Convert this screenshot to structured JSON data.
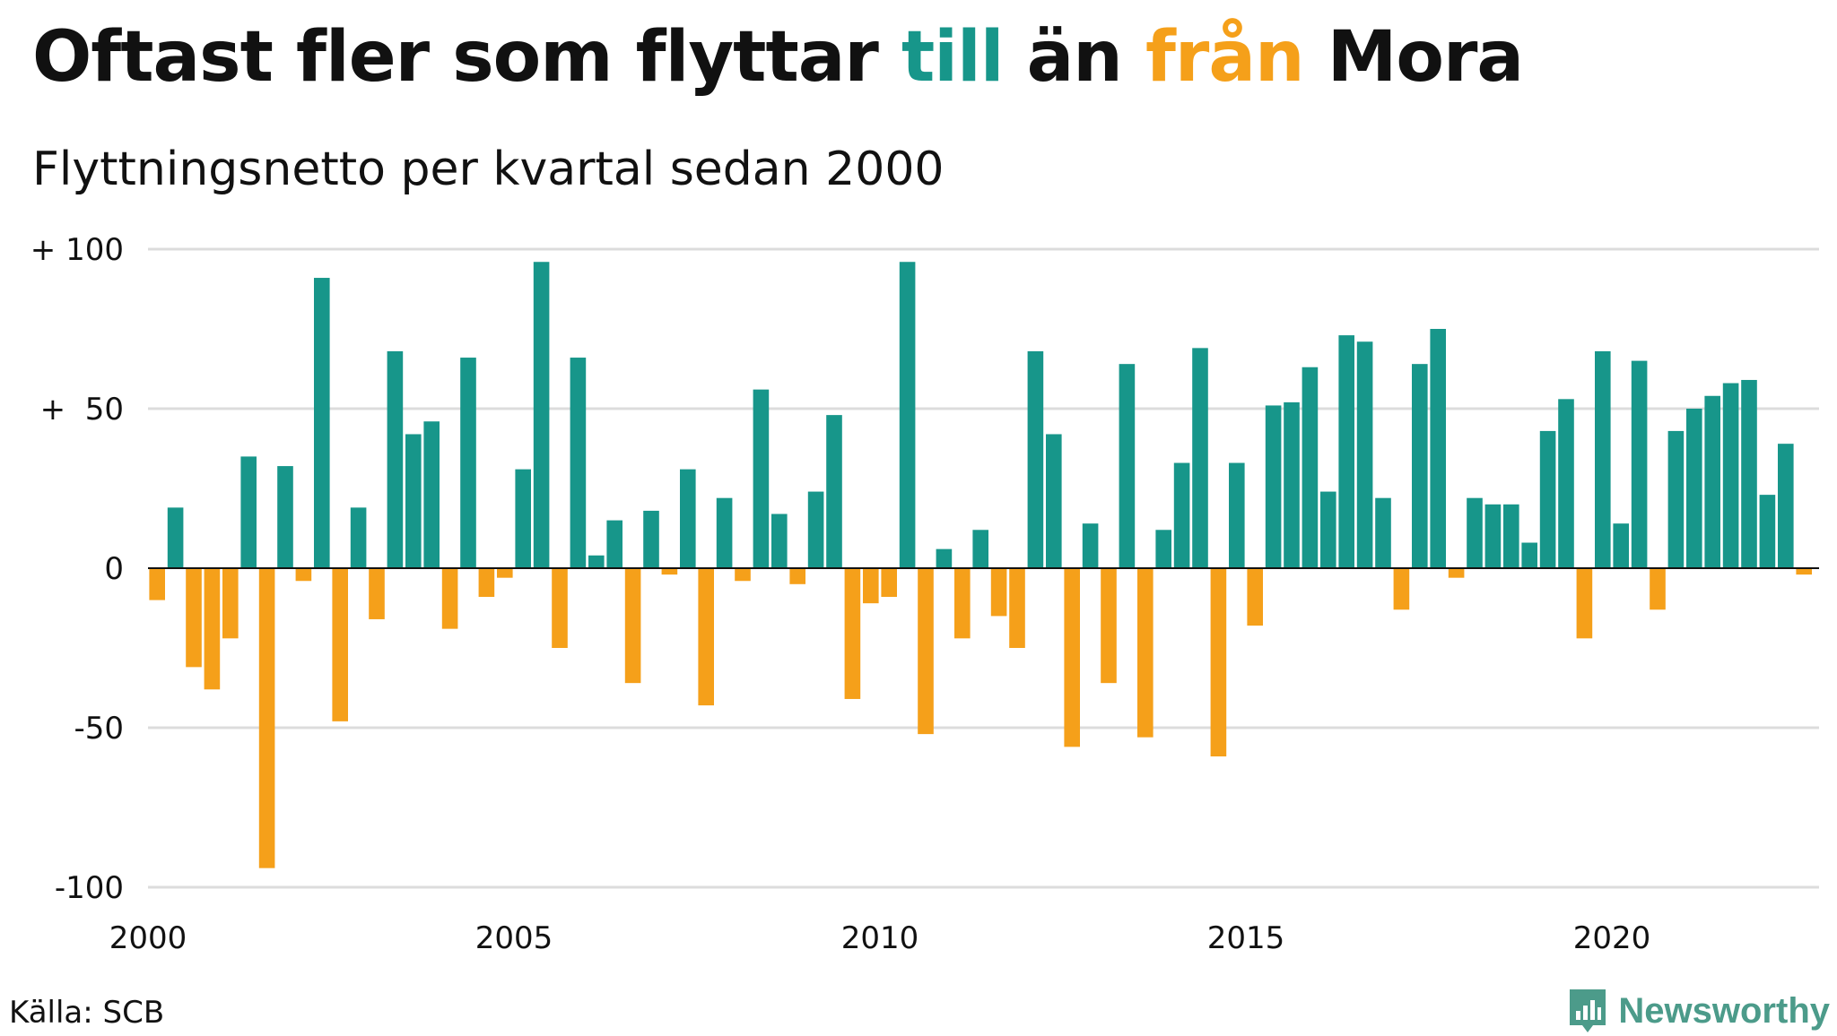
{
  "title": {
    "part1": "Oftast fler som flyttar ",
    "part2": "till",
    "part3": " än ",
    "part4": "från",
    "part5": " Mora"
  },
  "subtitle": "Flyttningsnetto per kvartal sedan 2000",
  "source": "Källa: SCB",
  "brand": "Newsworthy",
  "colors": {
    "positive": "#17968a",
    "negative": "#f5a01a",
    "grid": "#dcdcdc",
    "brand": "#4c9b8a"
  },
  "chart_data": {
    "type": "bar",
    "title": "Oftast fler som flyttar till än från Mora",
    "subtitle": "Flyttningsnetto per kvartal sedan 2000",
    "ylim": [
      -100,
      100
    ],
    "y_ticks": [
      {
        "value": 100,
        "label": "+ 100"
      },
      {
        "value": 50,
        "label": "+  50"
      },
      {
        "value": 0,
        "label": "0"
      },
      {
        "value": -50,
        "label": "-50"
      },
      {
        "value": -100,
        "label": "-100"
      }
    ],
    "x_ticks": [
      {
        "year": 2000,
        "label": "2000"
      },
      {
        "year": 2005,
        "label": "2005"
      },
      {
        "year": 2010,
        "label": "2010"
      },
      {
        "year": 2015,
        "label": "2015"
      },
      {
        "year": 2020,
        "label": "2020"
      }
    ],
    "start_year": 2000,
    "grid": true,
    "legend": "none",
    "values": [
      -10,
      19,
      -31,
      -38,
      -22,
      35,
      -94,
      32,
      -4,
      91,
      -48,
      19,
      -16,
      68,
      42,
      46,
      -19,
      66,
      -9,
      -3,
      31,
      96,
      -25,
      66,
      4,
      15,
      -36,
      18,
      -2,
      31,
      -43,
      22,
      -4,
      56,
      17,
      -5,
      24,
      48,
      -41,
      -11,
      -9,
      96,
      -52,
      6,
      -22,
      12,
      -15,
      -25,
      68,
      42,
      -56,
      14,
      -36,
      64,
      -53,
      12,
      33,
      69,
      -59,
      33,
      -18,
      51,
      52,
      63,
      24,
      73,
      71,
      22,
      -13,
      64,
      75,
      -3,
      22,
      20,
      20,
      8,
      43,
      53,
      -22,
      68,
      14,
      65,
      -13,
      43,
      50,
      54,
      58,
      59,
      23,
      39,
      -2
    ]
  }
}
